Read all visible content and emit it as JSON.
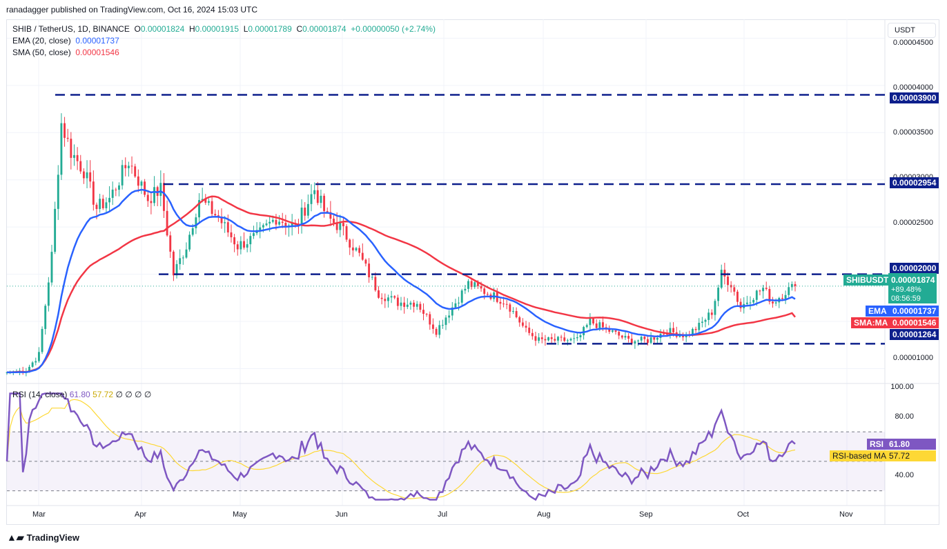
{
  "header": {
    "publisher": "ranadagger published on TradingView.com, Oct 16, 2024 15:03 UTC"
  },
  "legend": {
    "symbol": "SHIB / TetherUS, 1D, BINANCE",
    "o_label": "O",
    "o_value": "0.00001824",
    "h_label": "H",
    "h_value": "0.00001915",
    "l_label": "L",
    "l_value": "0.00001789",
    "c_label": "C",
    "c_value": "0.00001874",
    "change": "+0.00000050 (+2.74%)",
    "ema_label": "EMA (20, close)",
    "ema_value": "0.00001737",
    "sma_label": "SMA (50, close)",
    "sma_value": "0.00001546"
  },
  "currency_button": "USDT",
  "price_axis": [
    "0.00004500",
    "0.00004000",
    "0.00003500",
    "0.00003000",
    "0.00002500",
    "0.00001000"
  ],
  "tags": {
    "r3900": "0.00003900",
    "r2954": "0.00002954",
    "r2000": "0.00002000",
    "symbol_tag": "SHIBUSDT",
    "last_price": "0.00001874",
    "last_change": "+89.48%",
    "countdown": "08:56:59",
    "ema_tag": "EMA",
    "ema_price": "0.00001737",
    "sma_tag": "SMA:MA",
    "sma_price": "0.00001546",
    "s1264": "0.00001264"
  },
  "rsi": {
    "label": "RSI (14, close)",
    "value": "61.80",
    "ma_value": "57.72",
    "extra": "∅ ∅ ∅ ∅",
    "axis": [
      "100.00",
      "80.00",
      "40.00"
    ],
    "rsi_tag": "RSI",
    "rsi_tag_value": "61.80",
    "ma_tag": "RSI-based MA",
    "ma_tag_value": "57.72"
  },
  "months": [
    "Mar",
    "Apr",
    "May",
    "Jun",
    "Jul",
    "Aug",
    "Sep",
    "Oct",
    "Nov"
  ],
  "footer": {
    "brand": "TradingView"
  },
  "colors": {
    "up": "#22ab94",
    "down": "#f23645",
    "ema": "#2962ff",
    "sma": "#f23645",
    "level": "#0d1f8c",
    "rsi": "#7e57c2",
    "rsi_ma": "#fdd835"
  },
  "chart_data": [
    {
      "type": "candlestick",
      "title": "SHIB / TetherUS, 1D, BINANCE",
      "ylim": [
        8.5e-06,
        4.7e-05
      ],
      "horizontal_levels": [
        3.9e-05,
        2.954e-05,
        2e-05,
        1.264e-05
      ],
      "x_labels": [
        "Mar",
        "Apr",
        "May",
        "Jun",
        "Jul",
        "Aug",
        "Sep",
        "Oct",
        "Nov"
      ],
      "close_path": [
        {
          "t": 0,
          "close": 9.6e-06
        },
        {
          "t": 6,
          "close": 9.8e-06
        },
        {
          "t": 10,
          "close": 1.15e-05
        },
        {
          "t": 14,
          "close": 2.2e-05
        },
        {
          "t": 17,
          "close": 3.6e-05
        },
        {
          "t": 20,
          "close": 3.3e-05
        },
        {
          "t": 24,
          "close": 3.1e-05
        },
        {
          "t": 28,
          "close": 2.7e-05
        },
        {
          "t": 32,
          "close": 2.8e-05
        },
        {
          "t": 38,
          "close": 3.2e-05
        },
        {
          "t": 44,
          "close": 2.8e-05
        },
        {
          "t": 48,
          "close": 2.9e-05
        },
        {
          "t": 52,
          "close": 2e-05
        },
        {
          "t": 56,
          "close": 2.3e-05
        },
        {
          "t": 60,
          "close": 2.8e-05
        },
        {
          "t": 66,
          "close": 2.6e-05
        },
        {
          "t": 72,
          "close": 2.3e-05
        },
        {
          "t": 78,
          "close": 2.4e-05
        },
        {
          "t": 84,
          "close": 2.6e-05
        },
        {
          "t": 90,
          "close": 2.5e-05
        },
        {
          "t": 96,
          "close": 2.9e-05
        },
        {
          "t": 100,
          "close": 2.6e-05
        },
        {
          "t": 104,
          "close": 2.5e-05
        },
        {
          "t": 110,
          "close": 2.2e-05
        },
        {
          "t": 116,
          "close": 1.8e-05
        },
        {
          "t": 122,
          "close": 1.7e-05
        },
        {
          "t": 128,
          "close": 1.7e-05
        },
        {
          "t": 134,
          "close": 1.4e-05
        },
        {
          "t": 138,
          "close": 1.6e-05
        },
        {
          "t": 144,
          "close": 1.9e-05
        },
        {
          "t": 150,
          "close": 1.8e-05
        },
        {
          "t": 156,
          "close": 1.7e-05
        },
        {
          "t": 162,
          "close": 1.4e-05
        },
        {
          "t": 166,
          "close": 1.3e-05
        },
        {
          "t": 172,
          "close": 1.3e-05
        },
        {
          "t": 178,
          "close": 1.3e-05
        },
        {
          "t": 182,
          "close": 1.5e-05
        },
        {
          "t": 188,
          "close": 1.4e-05
        },
        {
          "t": 194,
          "close": 1.3e-05
        },
        {
          "t": 200,
          "close": 1.3e-05
        },
        {
          "t": 206,
          "close": 1.4e-05
        },
        {
          "t": 212,
          "close": 1.35e-05
        },
        {
          "t": 216,
          "close": 1.45e-05
        },
        {
          "t": 220,
          "close": 1.6e-05
        },
        {
          "t": 223,
          "close": 2e-05
        },
        {
          "t": 226,
          "close": 1.9e-05
        },
        {
          "t": 229,
          "close": 1.65e-05
        },
        {
          "t": 232,
          "close": 1.75e-05
        },
        {
          "t": 236,
          "close": 1.85e-05
        },
        {
          "t": 239,
          "close": 1.7e-05
        },
        {
          "t": 243,
          "close": 1.82e-05
        },
        {
          "t": 246,
          "close": 1.874e-05
        }
      ],
      "ema_20_last": 1.737e-05,
      "sma_50_last": 1.546e-05
    },
    {
      "type": "line",
      "title": "RSI (14, close)",
      "ylim": [
        20,
        100
      ],
      "levels": [
        70,
        50,
        30
      ],
      "series": [
        {
          "name": "RSI",
          "last": 61.8
        },
        {
          "name": "RSI-based MA",
          "last": 57.72
        }
      ]
    }
  ]
}
